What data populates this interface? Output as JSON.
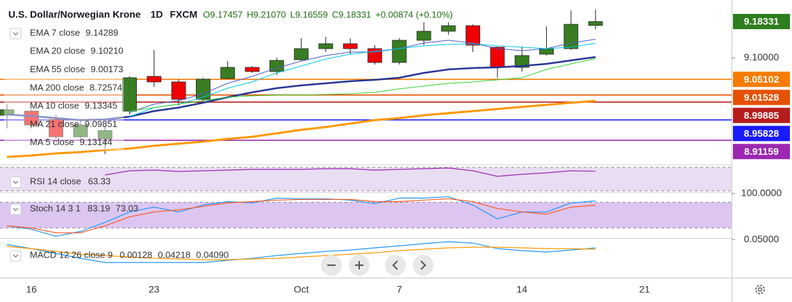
{
  "chart_data": [
    {
      "type": "candlestick",
      "title": "U.S. Dollar/Norwegian Krone",
      "interval": "1D",
      "source": "FXCM",
      "ohlc_labels": [
        "O9.17457",
        "H9.21070",
        "L9.16559",
        "C9.18331"
      ],
      "change": "+0.00874 (+0.10%)",
      "categories": [
        null,
        "16",
        null,
        null,
        null,
        null,
        "23",
        null,
        null,
        null,
        null,
        null,
        "Oct",
        null,
        null,
        null,
        "7",
        null,
        null,
        null,
        null,
        "14",
        null,
        null,
        null,
        null,
        "21"
      ],
      "open": [
        8.9688,
        8.9783,
        8.9593,
        8.9195,
        8.9148,
        8.9783,
        9.0578,
        9.0451,
        9.0053,
        9.053,
        9.0784,
        9.0689,
        9.0959,
        9.1213,
        9.1325,
        9.1213,
        9.0896,
        9.1404,
        9.1611,
        9.1738,
        9.1245,
        9.0784,
        9.1086,
        9.1213,
        9.17457,
        null,
        null
      ],
      "high": [
        8.9942,
        8.9815,
        8.9704,
        8.9593,
        8.9465,
        9.0578,
        9.1182,
        9.0514,
        9.0546,
        9.0927,
        9.0815,
        9.1007,
        9.1452,
        9.1483,
        9.1452,
        9.1293,
        9.1452,
        9.1817,
        9.1817,
        9.1769,
        9.1261,
        9.1261,
        9.1722,
        9.2087,
        9.2107,
        null,
        null
      ],
      "low": [
        8.9386,
        8.9386,
        8.9148,
        8.9148,
        8.8798,
        8.9704,
        9.0339,
        8.991,
        9.0006,
        9.0514,
        9.0657,
        9.061,
        9.0927,
        9.1134,
        9.1086,
        9.0848,
        9.0848,
        9.1293,
        9.1531,
        9.1134,
        9.0546,
        9.0689,
        9.1055,
        9.1182,
        9.16559,
        null,
        null
      ],
      "close": [
        8.9815,
        8.9465,
        8.9195,
        8.9465,
        8.9338,
        9.0546,
        9.0451,
        9.0053,
        9.0514,
        9.0784,
        9.0689,
        9.0943,
        9.1213,
        9.1325,
        9.1213,
        9.0896,
        9.1404,
        9.1611,
        9.1738,
        9.1293,
        9.0784,
        9.1055,
        9.1213,
        9.1769,
        9.18331,
        null,
        null
      ],
      "up_color": "#387d22",
      "down_color": "#f00000",
      "ylim": [
        8.8592,
        9.2326
      ],
      "yticks": [
        {
          "value": 9.1,
          "label": "9.10000"
        }
      ],
      "price_labels": [
        {
          "value": 9.18331,
          "label": "9.18331",
          "color": "#2e7d1e",
          "line": false
        },
        {
          "value": 9.05102,
          "label": "9.05102",
          "color": "#f57c00",
          "line": true
        },
        {
          "value": 9.01528,
          "label": "9.01528",
          "color": "#e65100",
          "line": true
        },
        {
          "value": 8.99885,
          "label": "8.99885",
          "color": "#b71c1c",
          "line": true
        },
        {
          "value": 8.95828,
          "label": "8.95828",
          "color": "#1a1aff",
          "line": true
        },
        {
          "value": 8.91159,
          "label": "8.91159",
          "color": "#9c27b0",
          "line": true
        }
      ],
      "series": [
        {
          "name": "EMA 7 close",
          "last": "9.14289",
          "color": "#4a5cc0",
          "line_width": 1,
          "values": [
            null,
            null,
            null,
            null,
            null,
            8.9752,
            8.9942,
            9.0022,
            9.0181,
            9.0419,
            9.0578,
            9.0769,
            9.0927,
            9.1055,
            9.1134,
            9.1134,
            9.1213,
            9.1341,
            9.1404,
            9.1341,
            9.1213,
            9.1166,
            9.1213,
            9.1341,
            9.1429,
            null,
            null
          ]
        },
        {
          "name": "EMA 20 close",
          "last": "9.10210",
          "color": "#283593",
          "line_width": 2.5,
          "values": [
            8.9704,
            8.9672,
            8.9624,
            8.9577,
            8.9593,
            8.9656,
            8.9783,
            8.9863,
            8.9974,
            9.0101,
            9.0212,
            9.0308,
            9.0371,
            9.0419,
            9.0467,
            9.0498,
            9.0546,
            9.0657,
            9.0737,
            9.0769,
            9.0784,
            9.0816,
            9.0864,
            9.0943,
            9.1021,
            null,
            null
          ]
        },
        {
          "name": "EMA 55 close",
          "last": "9.00173",
          "color": "#ff9800",
          "line_width": 3,
          "values": [
            8.8735,
            8.8766,
            8.8814,
            8.8846,
            8.8893,
            8.8925,
            8.8989,
            8.9037,
            8.9084,
            8.9148,
            8.9195,
            8.9275,
            8.9354,
            8.9418,
            8.9497,
            8.9577,
            8.9624,
            8.9688,
            8.9736,
            8.9783,
            8.9831,
            8.9879,
            8.9926,
            8.9974,
            9.0017,
            null,
            null
          ]
        },
        {
          "name": "MA 200 close",
          "last": "8.72574",
          "color": "#e53935"
        },
        {
          "name": "MA 10 close",
          "last": "9.13345",
          "color": "#00c8e8",
          "line_width": 1,
          "values": [
            null,
            null,
            null,
            null,
            null,
            8.9656,
            8.9863,
            8.9942,
            9.0101,
            9.0308,
            9.0451,
            9.0657,
            9.0816,
            9.0975,
            9.1086,
            9.115,
            9.1213,
            9.1277,
            9.1309,
            9.1325,
            9.1277,
            9.1245,
            9.1213,
            9.1245,
            9.1335,
            null,
            null
          ]
        },
        {
          "name": "MA 21 close",
          "last": "9.09851",
          "color": "#32d132",
          "line_width": 1,
          "values": [
            null,
            null,
            null,
            null,
            null,
            8.9783,
            8.9863,
            8.9942,
            9.0022,
            9.0101,
            9.0133,
            9.0149,
            9.0149,
            9.0165,
            9.0181,
            9.0212,
            9.0292,
            9.0355,
            9.0419,
            9.0451,
            9.0498,
            9.0546,
            9.0737,
            9.0864,
            9.0985,
            null,
            null
          ]
        },
        {
          "name": "MA 5 close",
          "last": "9.13144",
          "color": "#7e57c2"
        }
      ]
    },
    {
      "type": "line",
      "title": "RSI 14 close",
      "ylim": [
        30,
        70
      ],
      "bands": [
        30,
        70
      ],
      "band_color": "#e9ddf3",
      "series": [
        {
          "last": "63.33",
          "color": "#9c27b0",
          "values": [
            null,
            null,
            null,
            null,
            57.1,
            64.1,
            65.3,
            62.9,
            64.1,
            65.3,
            66.5,
            66.5,
            66.5,
            67.6,
            67.6,
            65.3,
            66.5,
            67.6,
            68.8,
            64.1,
            54.7,
            58.2,
            60.6,
            64.1,
            63.33,
            null,
            null
          ]
        }
      ]
    },
    {
      "type": "line",
      "title": "Stoch 14 3 1",
      "ylim": [
        0,
        100
      ],
      "yticks": [
        {
          "value": 100,
          "label": "100.0000"
        }
      ],
      "bands": [
        20,
        80
      ],
      "band_color": "#dcc6f1",
      "series": [
        {
          "last": "83.19",
          "color": "#2196f3",
          "values": [
            24.9,
            16.8,
            0.6,
            11.9,
            33.0,
            57.3,
            68.7,
            57.3,
            73.5,
            81.6,
            78.4,
            89.7,
            88.1,
            88.1,
            84.9,
            76.8,
            89.7,
            89.7,
            93.0,
            73.5,
            41.1,
            57.3,
            57.3,
            78.4,
            83.19,
            null,
            null
          ]
        },
        {
          "last": "73.03",
          "color": "#ff5722",
          "values": [
            24.9,
            20.0,
            8.7,
            8.7,
            24.9,
            46.0,
            57.3,
            62.2,
            70.3,
            78.4,
            81.6,
            84.9,
            86.5,
            86.5,
            86.5,
            81.6,
            81.6,
            84.9,
            88.1,
            81.6,
            65.4,
            57.3,
            52.4,
            68.7,
            73.03,
            null,
            null
          ]
        }
      ]
    },
    {
      "type": "line",
      "title": "MACD 12 26 close 9",
      "histogram_last": "0.00128",
      "histogram_color": "#26a69a",
      "ylim": [
        0.0155,
        0.0533
      ],
      "yticks": [
        {
          "value": 0.05,
          "label": "0.05000"
        }
      ],
      "series": [
        {
          "last": "0.04218",
          "color": "#2196f3",
          "values": [
            0.0454,
            0.0415,
            0.037,
            0.0324,
            0.0285,
            0.0285,
            0.0285,
            0.0285,
            0.0285,
            0.0305,
            0.0324,
            0.035,
            0.037,
            0.0389,
            0.0402,
            0.0422,
            0.0441,
            0.0461,
            0.048,
            0.0467,
            0.0415,
            0.0396,
            0.0383,
            0.0402,
            0.04218,
            null,
            null
          ]
        },
        {
          "last": "0.04090",
          "color": "#ff9800",
          "values": [
            0.0435,
            0.0415,
            0.0389,
            0.0363,
            0.035,
            0.0337,
            0.0324,
            0.0318,
            0.0311,
            0.0311,
            0.0318,
            0.0324,
            0.0337,
            0.035,
            0.0363,
            0.0376,
            0.0396,
            0.0409,
            0.0422,
            0.0428,
            0.0428,
            0.0422,
            0.0415,
            0.0415,
            0.0409,
            null,
            null
          ]
        }
      ]
    }
  ]
}
